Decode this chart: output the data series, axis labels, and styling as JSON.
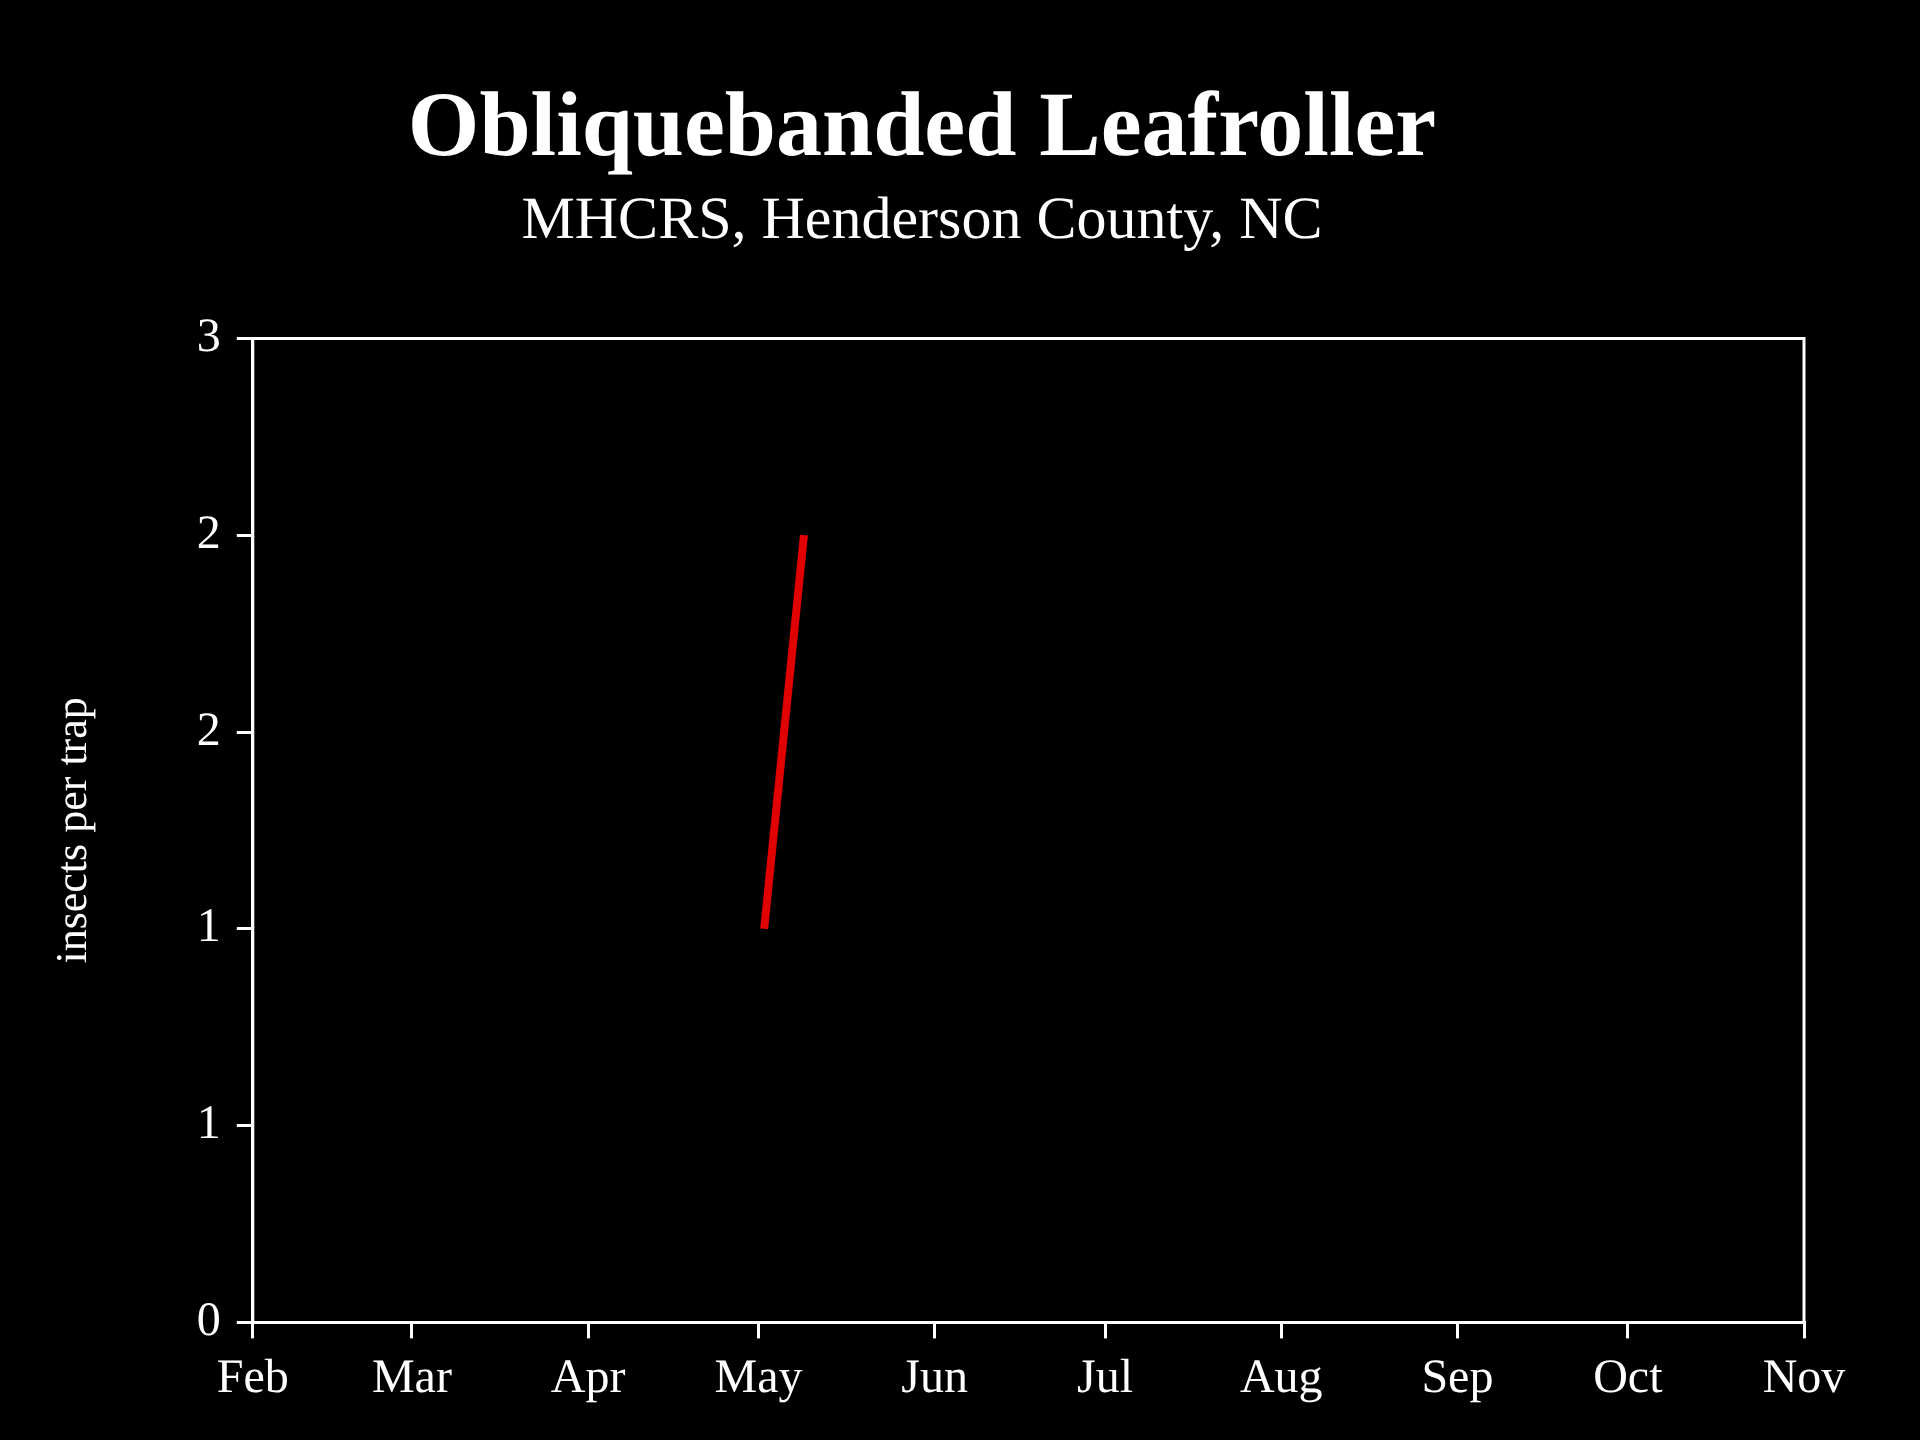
{
  "chart_data": {
    "type": "line",
    "title": "Obliquebanded Leafroller",
    "subtitle": "MHCRS, Henderson County, NC",
    "ylabel": "insects per trap",
    "x": [
      "--05-02",
      "--05-09"
    ],
    "series": [
      {
        "color": "#e00000",
        "values": [
          1.2,
          2.4
        ]
      }
    ],
    "xlim": [
      "--02-01",
      "--11-01"
    ],
    "xticks": [
      {
        "value": "--02-01",
        "label": "Feb"
      },
      {
        "value": "--03-01",
        "label": "Mar"
      },
      {
        "value": "--04-01",
        "label": "Apr"
      },
      {
        "value": "--05-01",
        "label": "May"
      },
      {
        "value": "--06-01",
        "label": "Jun"
      },
      {
        "value": "--07-01",
        "label": "Jul"
      },
      {
        "value": "--08-01",
        "label": "Aug"
      },
      {
        "value": "--09-01",
        "label": "Sep"
      },
      {
        "value": "--10-01",
        "label": "Oct"
      },
      {
        "value": "--11-01",
        "label": "Nov"
      }
    ],
    "ylim": [
      0,
      3
    ],
    "yticks": [
      {
        "value": 0,
        "label": "0"
      },
      {
        "value": 0.6,
        "label": "1"
      },
      {
        "value": 1.2,
        "label": "1"
      },
      {
        "value": 1.8,
        "label": "2"
      },
      {
        "value": 2.4,
        "label": "2"
      },
      {
        "value": 3,
        "label": "3"
      }
    ],
    "grid": false,
    "legend": false,
    "marker": "none",
    "line_style": "solid"
  }
}
